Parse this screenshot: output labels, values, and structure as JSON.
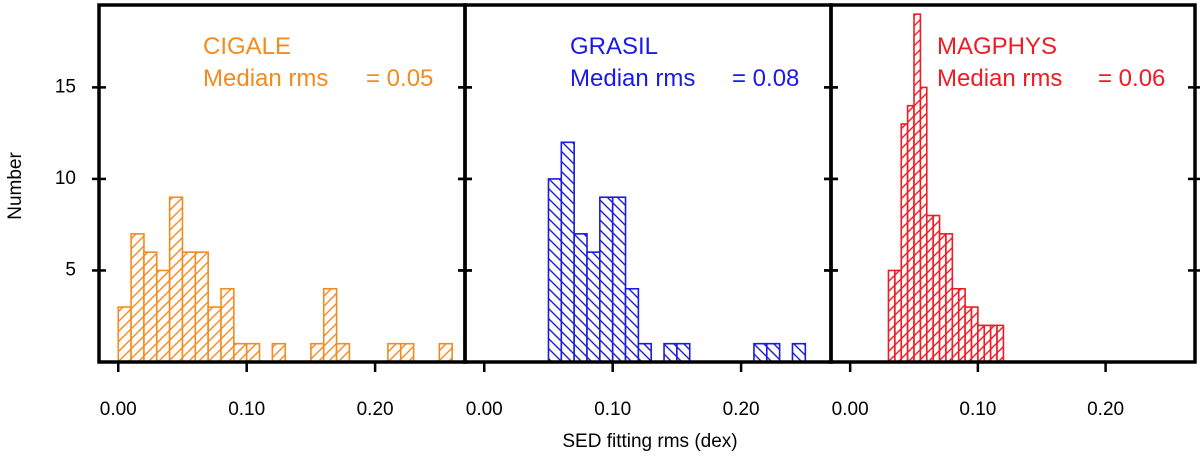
{
  "figure": {
    "xlabel": "SED fitting rms (dex)",
    "ylabel": "Number"
  },
  "chart_data": [
    {
      "type": "bar",
      "name": "CIGALE",
      "title": "CIGALE",
      "annotation_label": "Median rms",
      "annotation_value": "= 0.05",
      "median": 0.05,
      "color": "#f28c1e",
      "hatch": "diagonal-up",
      "bin_width": 0.01,
      "x": [
        0.005,
        0.015,
        0.025,
        0.035,
        0.045,
        0.055,
        0.065,
        0.075,
        0.085,
        0.095,
        0.105,
        0.115,
        0.125,
        0.135,
        0.145,
        0.155,
        0.165,
        0.175,
        0.185,
        0.195,
        0.205,
        0.215,
        0.225,
        0.235,
        0.245,
        0.255
      ],
      "values": [
        3,
        7,
        6,
        5,
        9,
        6,
        6,
        3,
        4,
        1,
        1,
        0,
        1,
        0,
        0,
        1,
        4,
        1,
        0,
        0,
        0,
        1,
        1,
        0,
        0,
        1
      ],
      "xticks": [
        "0.00",
        "0.10",
        "0.20"
      ],
      "xlim": [
        -0.015,
        0.27
      ],
      "ylim": [
        0,
        19.5
      ]
    },
    {
      "type": "bar",
      "name": "GRASIL",
      "title": "GRASIL",
      "annotation_label": "Median rms",
      "annotation_value": "= 0.08",
      "median": 0.08,
      "color": "#1a1ae8",
      "hatch": "diagonal-down",
      "bin_width": 0.01,
      "x": [
        0.055,
        0.065,
        0.075,
        0.085,
        0.095,
        0.105,
        0.115,
        0.125,
        0.135,
        0.145,
        0.155,
        0.165,
        0.175,
        0.185,
        0.195,
        0.205,
        0.215,
        0.225,
        0.235,
        0.245
      ],
      "values": [
        10,
        12,
        7,
        6,
        9,
        9,
        4,
        1,
        0,
        1,
        1,
        0,
        0,
        0,
        0,
        0,
        1,
        1,
        0,
        1
      ],
      "xticks": [
        "0.00",
        "0.10",
        "0.20"
      ],
      "xlim": [
        -0.015,
        0.27
      ],
      "ylim": [
        0,
        19.5
      ]
    },
    {
      "type": "bar",
      "name": "MAGPHYS",
      "title": "MAGPHYS",
      "annotation_label": "Median rms",
      "annotation_value": "= 0.06",
      "median": 0.06,
      "color": "#ee1c24",
      "hatch": "diagonal-up",
      "bin_width": 0.005,
      "x": [
        0.0325,
        0.0375,
        0.0425,
        0.0475,
        0.0525,
        0.0575,
        0.0625,
        0.0675,
        0.0725,
        0.0775,
        0.0825,
        0.0875,
        0.0925,
        0.0975,
        0.1025,
        0.1075,
        0.1125,
        0.1175
      ],
      "values": [
        5,
        5,
        13,
        14,
        19,
        15,
        8,
        8,
        7,
        7,
        4,
        4,
        3,
        3,
        2,
        2,
        2,
        2
      ],
      "xticks": [
        "0.00",
        "0.10",
        "0.20"
      ],
      "xlim": [
        -0.015,
        0.27
      ],
      "ylim": [
        0,
        19.5
      ]
    }
  ],
  "yticks": [
    "5",
    "10",
    "15"
  ]
}
